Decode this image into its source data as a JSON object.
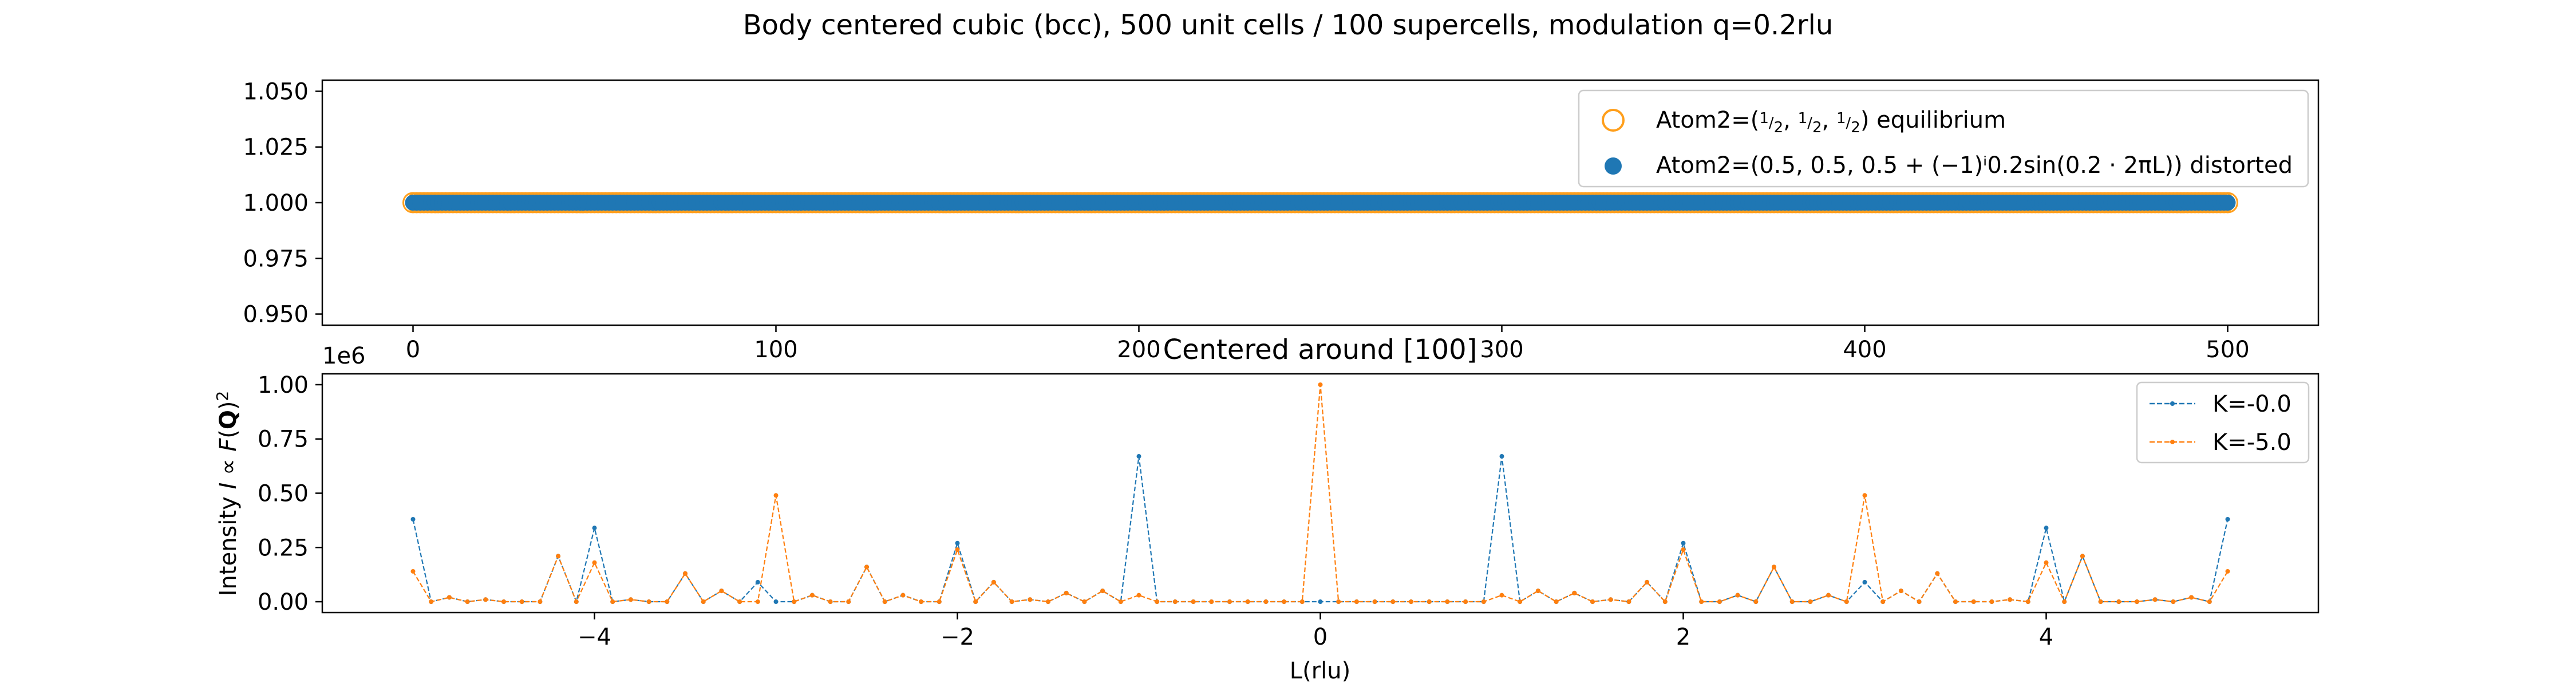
{
  "figure": {
    "suptitle": "Body centered cubic (bcc), 500 unit cells / 100 supercells, modulation q=0.2rlu"
  },
  "chart_data": [
    {
      "type": "scatter",
      "title": "",
      "xlabel": "",
      "ylabel": "",
      "xlim": [
        -25,
        525
      ],
      "ylim": [
        0.945,
        1.055
      ],
      "xticks": [
        "0",
        "100",
        "200",
        "300",
        "400",
        "500"
      ],
      "yticks": [
        "0.950",
        "0.975",
        "1.000",
        "1.025",
        "1.050"
      ],
      "legend_position": "upper right",
      "series": [
        {
          "name": "Atom2=(½, ½, ½) equilibrium",
          "marker": "open-circle",
          "color": "#ff9f1c",
          "x_range": [
            0,
            500
          ],
          "point_count": 501,
          "y": 1.0
        },
        {
          "name": "Atom2=(0.5, 0.5, 0.5 + (−1)ⁱ0.2sin(0.2 · 2πL)) distorted",
          "marker": "filled-circle",
          "color": "#1f77b4",
          "x_range": [
            0,
            500
          ],
          "point_count": 501,
          "y": 1.0
        }
      ]
    },
    {
      "type": "line",
      "title": "Centered around [100]",
      "xlabel": "L(rlu)",
      "ylabel": "Intensity I ∝ F(Q)²",
      "y_offset_label": "1e6",
      "xlim": [
        -5.5,
        5.5
      ],
      "ylim": [
        -0.05,
        1.05
      ],
      "xticks": [
        "−4",
        "−2",
        "0",
        "2",
        "4"
      ],
      "yticks": [
        "0.00",
        "0.25",
        "0.50",
        "0.75",
        "1.00"
      ],
      "legend_position": "upper right",
      "x": [
        -5.0,
        -4.9,
        -4.8,
        -4.7,
        -4.6,
        -4.5,
        -4.4,
        -4.3,
        -4.2,
        -4.1,
        -4.0,
        -3.9,
        -3.8,
        -3.7,
        -3.6,
        -3.5,
        -3.4,
        -3.3,
        -3.2,
        -3.1,
        -3.0,
        -2.9,
        -2.8,
        -2.7,
        -2.6,
        -2.5,
        -2.4,
        -2.3,
        -2.2,
        -2.1,
        -2.0,
        -1.9,
        -1.8,
        -1.7,
        -1.6,
        -1.5,
        -1.4,
        -1.3,
        -1.2,
        -1.1,
        -1.0,
        -0.9,
        -0.8,
        -0.7,
        -0.6,
        -0.5,
        -0.4,
        -0.3,
        -0.2,
        -0.1,
        0.0,
        0.1,
        0.2,
        0.3,
        0.4,
        0.5,
        0.6,
        0.7,
        0.8,
        0.9,
        1.0,
        1.1,
        1.2,
        1.3,
        1.4,
        1.5,
        1.6,
        1.7,
        1.8,
        1.9,
        2.0,
        2.1,
        2.2,
        2.3,
        2.4,
        2.5,
        2.6,
        2.7,
        2.8,
        2.9,
        3.0,
        3.1,
        3.2,
        3.3,
        3.4,
        3.5,
        3.6,
        3.7,
        3.8,
        3.9,
        4.0,
        4.1,
        4.2,
        4.3,
        4.4,
        4.5,
        4.6,
        4.7,
        4.8,
        4.9,
        5.0
      ],
      "series": [
        {
          "name": "K=-0.0",
          "color": "#1f77b4",
          "y": [
            0.38,
            0.0,
            0.02,
            0.0,
            0.01,
            0.0,
            0.0,
            0.0,
            0.21,
            0.0,
            0.34,
            0.0,
            0.01,
            0.0,
            0.0,
            0.13,
            0.0,
            0.05,
            0.0,
            0.09,
            0.0,
            0.0,
            0.03,
            0.0,
            0.0,
            0.16,
            0.0,
            0.03,
            0.0,
            0.0,
            0.27,
            0.0,
            0.09,
            0.0,
            0.01,
            0.0,
            0.04,
            0.0,
            0.05,
            0.0,
            0.67,
            0.0,
            0.0,
            0.0,
            0.0,
            0.0,
            0.0,
            0.0,
            0.0,
            0.0,
            0.0,
            0.0,
            0.0,
            0.0,
            0.0,
            0.0,
            0.0,
            0.0,
            0.0,
            0.0,
            0.67,
            0.0,
            0.05,
            0.0,
            0.04,
            0.0,
            0.01,
            0.0,
            0.09,
            0.0,
            0.27,
            0.0,
            0.0,
            0.03,
            0.0,
            0.16,
            0.0,
            0.0,
            0.03,
            0.0,
            0.09,
            0.0,
            0.05,
            0.0,
            0.13,
            0.0,
            0.0,
            0.0,
            0.01,
            0.0,
            0.34,
            0.0,
            0.21,
            0.0,
            0.0,
            0.0,
            0.01,
            0.0,
            0.02,
            0.0,
            0.38
          ]
        },
        {
          "name": "K=-5.0",
          "color": "#ff7f0e",
          "y": [
            0.14,
            0.0,
            0.02,
            0.0,
            0.01,
            0.0,
            0.0,
            0.0,
            0.21,
            0.0,
            0.18,
            0.0,
            0.01,
            0.0,
            0.0,
            0.13,
            0.0,
            0.05,
            0.0,
            0.0,
            0.49,
            0.0,
            0.03,
            0.0,
            0.0,
            0.16,
            0.0,
            0.03,
            0.0,
            0.0,
            0.24,
            0.0,
            0.09,
            0.0,
            0.01,
            0.0,
            0.04,
            0.0,
            0.05,
            0.0,
            0.03,
            0.0,
            0.0,
            0.0,
            0.0,
            0.0,
            0.0,
            0.0,
            0.0,
            0.0,
            1.0,
            0.0,
            0.0,
            0.0,
            0.0,
            0.0,
            0.0,
            0.0,
            0.0,
            0.0,
            0.03,
            0.0,
            0.05,
            0.0,
            0.04,
            0.0,
            0.01,
            0.0,
            0.09,
            0.0,
            0.24,
            0.0,
            0.0,
            0.03,
            0.0,
            0.16,
            0.0,
            0.0,
            0.03,
            0.0,
            0.49,
            0.0,
            0.05,
            0.0,
            0.13,
            0.0,
            0.0,
            0.0,
            0.01,
            0.0,
            0.18,
            0.0,
            0.21,
            0.0,
            0.0,
            0.0,
            0.01,
            0.0,
            0.02,
            0.0,
            0.14
          ]
        }
      ]
    }
  ]
}
